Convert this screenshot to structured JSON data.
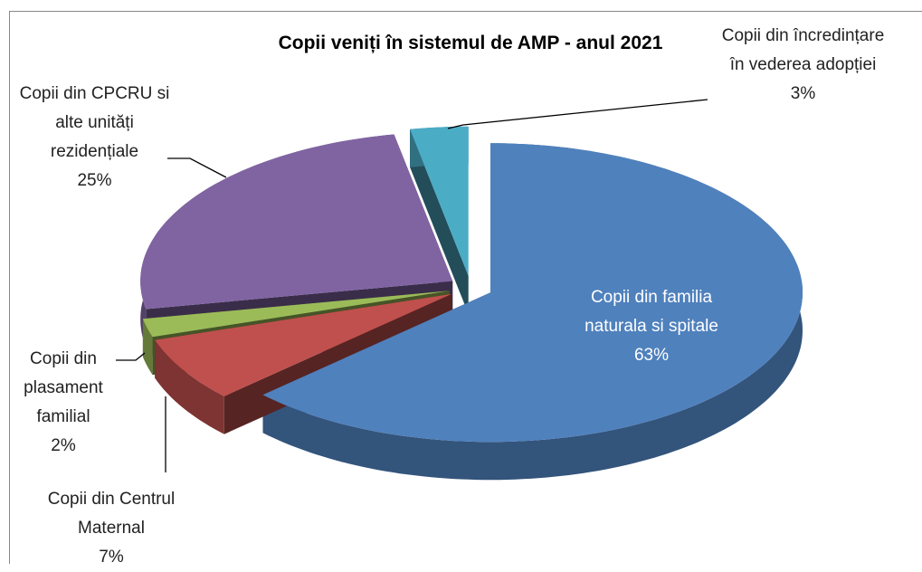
{
  "chart_data": {
    "type": "pie",
    "title": "Copii veniți în sistemul de AMP - anul 2021",
    "categories": [
      "Copii din familia naturala si spitale",
      "Copii din Centrul Maternal",
      "Copii din plasament familial",
      "Copii din CPCRU si alte unități rezidențiale",
      "Copii din încredințare în vederea adopției"
    ],
    "values": [
      63,
      7,
      2,
      25,
      3
    ],
    "value_labels": [
      "63%",
      "7%",
      "2%",
      "25%",
      "3%"
    ],
    "colors": [
      "#4f81bd",
      "#c0504d",
      "#9bbb59",
      "#8064a2",
      "#4bacc6"
    ]
  }
}
